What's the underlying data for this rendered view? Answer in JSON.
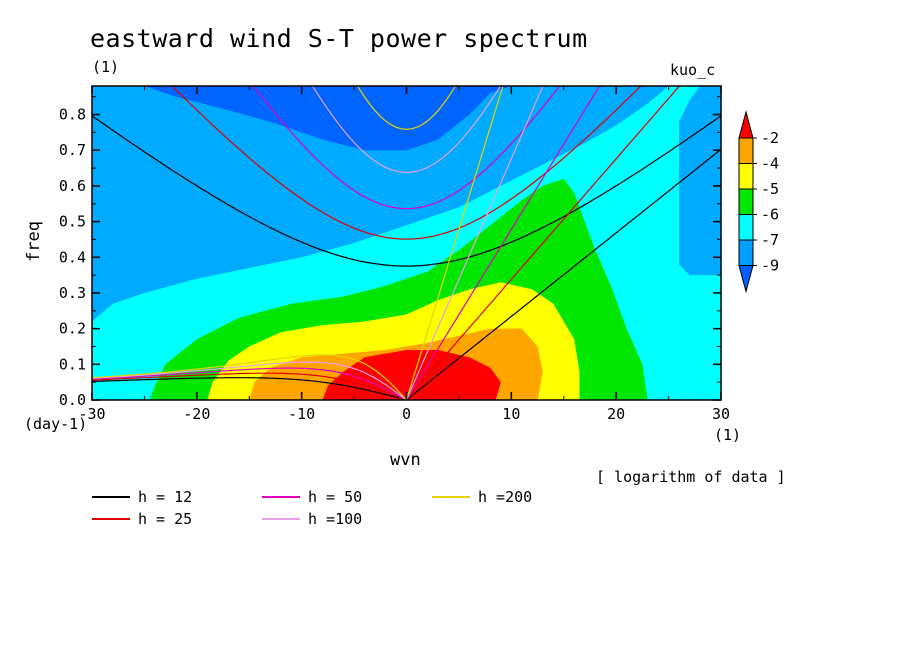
{
  "chart_data": {
    "type": "heatmap",
    "title": "eastward wind S-T power spectrum",
    "subtitle_left": "(1)",
    "subtitle_right": "kuo_c",
    "xlabel": "wvn",
    "ylabel": "freq",
    "x_unit": "(1)",
    "y_unit": "(day-1)",
    "note": "[ logarithm of data ]",
    "xlim": [
      -30,
      30
    ],
    "ylim": [
      0,
      0.88
    ],
    "xticks": [
      -30,
      -20,
      -10,
      0,
      10,
      20,
      30
    ],
    "xtick_labels": [
      "-30",
      "-20",
      "-10",
      "0",
      "10",
      "20",
      "30"
    ],
    "yticks": [
      0.0,
      0.1,
      0.2,
      0.3,
      0.4,
      0.5,
      0.6,
      0.7,
      0.8
    ],
    "ytick_labels": [
      "0.0",
      "0.1",
      "0.2",
      "0.3",
      "0.4",
      "0.5",
      "0.6",
      "0.7",
      "0.8"
    ],
    "colorbar": {
      "levels": [
        "-2",
        "-4",
        "-5",
        "-6",
        "-7",
        "-9"
      ],
      "colors": [
        "#ff0000",
        "#ffa500",
        "#ffff00",
        "#00e600",
        "#00ffff",
        "#00a0ff",
        "#0060ff"
      ]
    },
    "fill_colors": {
      "deep_blue": "#0064ff",
      "blue": "#00aaff",
      "cyan": "#00ffff",
      "green": "#00e600",
      "yellow": "#ffff00",
      "orange": "#ffa500",
      "red": "#ff0000"
    },
    "dispersion_curves": [
      {
        "h": 12,
        "label": "h = 12",
        "color": "#000000"
      },
      {
        "h": 25,
        "label": "h = 25",
        "color": "#e00000"
      },
      {
        "h": 50,
        "label": "h = 50",
        "color": "#e000c0"
      },
      {
        "h": 100,
        "label": "h =100",
        "color": "#e6a0e6"
      },
      {
        "h": 200,
        "label": "h =200",
        "color": "#e6d200"
      }
    ]
  }
}
